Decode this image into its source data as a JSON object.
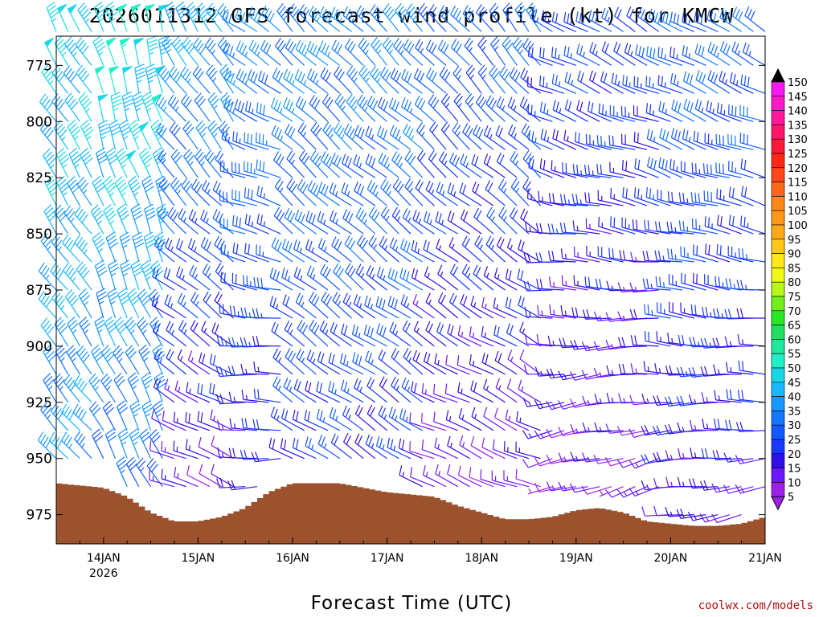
{
  "title": "2026011312 GFS forecast wind profile (kt) for KMCW",
  "credit": "coolwx.com/models",
  "chart_data": {
    "type": "wind-barb-time-height",
    "title": "2026011312 GFS forecast wind profile (kt) for KMCW",
    "xlabel": "Forecast Time (UTC)",
    "ylabel": "",
    "x_ticks": [
      {
        "label": "14JAN",
        "sublabel": "2026",
        "hour": 12
      },
      {
        "label": "15JAN",
        "sublabel": "",
        "hour": 36
      },
      {
        "label": "16JAN",
        "sublabel": "",
        "hour": 60
      },
      {
        "label": "17JAN",
        "sublabel": "",
        "hour": 84
      },
      {
        "label": "18JAN",
        "sublabel": "",
        "hour": 108
      },
      {
        "label": "19JAN",
        "sublabel": "",
        "hour": 132
      },
      {
        "label": "20JAN",
        "sublabel": "",
        "hour": 156
      },
      {
        "label": "21JAN",
        "sublabel": "",
        "hour": 180
      }
    ],
    "xlim": [
      0,
      180
    ],
    "y_ticks": [
      775,
      800,
      825,
      850,
      875,
      900,
      925,
      950,
      975
    ],
    "ylim": [
      762,
      988
    ],
    "pressure_levels": [
      760,
      775,
      787.5,
      800,
      812.5,
      825,
      837.5,
      850,
      862.5,
      875,
      887.5,
      900,
      912.5,
      925,
      937.5,
      950,
      962.5,
      975
    ],
    "time_step_hours": 3,
    "surface_pressure": [
      {
        "hour": 0,
        "p": 961
      },
      {
        "hour": 6,
        "p": 962
      },
      {
        "hour": 12,
        "p": 963
      },
      {
        "hour": 18,
        "p": 967
      },
      {
        "hour": 24,
        "p": 974
      },
      {
        "hour": 30,
        "p": 978
      },
      {
        "hour": 36,
        "p": 978
      },
      {
        "hour": 42,
        "p": 976
      },
      {
        "hour": 48,
        "p": 972
      },
      {
        "hour": 54,
        "p": 965
      },
      {
        "hour": 60,
        "p": 961
      },
      {
        "hour": 72,
        "p": 961
      },
      {
        "hour": 78,
        "p": 963
      },
      {
        "hour": 84,
        "p": 965
      },
      {
        "hour": 90,
        "p": 966
      },
      {
        "hour": 96,
        "p": 967
      },
      {
        "hour": 102,
        "p": 971
      },
      {
        "hour": 108,
        "p": 974
      },
      {
        "hour": 114,
        "p": 977
      },
      {
        "hour": 120,
        "p": 977
      },
      {
        "hour": 126,
        "p": 976
      },
      {
        "hour": 132,
        "p": 973
      },
      {
        "hour": 138,
        "p": 972
      },
      {
        "hour": 144,
        "p": 974
      },
      {
        "hour": 150,
        "p": 978
      },
      {
        "hour": 156,
        "p": 979
      },
      {
        "hour": 162,
        "p": 980
      },
      {
        "hour": 168,
        "p": 980
      },
      {
        "hour": 174,
        "p": 979
      },
      {
        "hour": 180,
        "p": 976
      }
    ],
    "wind_regimes": [
      {
        "from_hour": 0,
        "to_hour": 12,
        "speed_upper_kt": 45,
        "speed_lower_kt": 35,
        "dir_upper_deg": 330,
        "dir_lower_deg": 320
      },
      {
        "from_hour": 12,
        "to_hour": 30,
        "speed_upper_kt": 50,
        "speed_lower_kt": 30,
        "dir_upper_deg": 345,
        "dir_lower_deg": 330
      },
      {
        "from_hour": 30,
        "to_hour": 48,
        "speed_upper_kt": 40,
        "speed_lower_kt": 10,
        "dir_upper_deg": 330,
        "dir_lower_deg": 290
      },
      {
        "from_hour": 48,
        "to_hour": 60,
        "speed_upper_kt": 35,
        "speed_lower_kt": 15,
        "dir_upper_deg": 305,
        "dir_lower_deg": 260
      },
      {
        "from_hour": 60,
        "to_hour": 96,
        "speed_upper_kt": 35,
        "speed_lower_kt": 20,
        "dir_upper_deg": 315,
        "dir_lower_deg": 300
      },
      {
        "from_hour": 96,
        "to_hour": 126,
        "speed_upper_kt": 30,
        "speed_lower_kt": 10,
        "dir_upper_deg": 320,
        "dir_lower_deg": 290
      },
      {
        "from_hour": 126,
        "to_hour": 156,
        "speed_upper_kt": 25,
        "speed_lower_kt": 10,
        "dir_upper_deg": 300,
        "dir_lower_deg": 250
      },
      {
        "from_hour": 156,
        "to_hour": 180,
        "speed_upper_kt": 30,
        "speed_lower_kt": 15,
        "dir_upper_deg": 300,
        "dir_lower_deg": 260
      }
    ],
    "colorbar": {
      "unit": "kt",
      "labels": [
        5,
        10,
        15,
        20,
        25,
        30,
        35,
        40,
        45,
        50,
        55,
        60,
        65,
        70,
        75,
        80,
        85,
        90,
        95,
        100,
        105,
        110,
        115,
        120,
        125,
        130,
        135,
        140,
        145,
        150
      ],
      "colors": [
        "#9c20e8",
        "#6c18ff",
        "#3010e8",
        "#1838ff",
        "#1458ff",
        "#1478ff",
        "#1898ff",
        "#18b8ff",
        "#18d8e8",
        "#20f0c8",
        "#20e89c",
        "#20e060",
        "#28e828",
        "#70f018",
        "#b8f818",
        "#f0f818",
        "#ffe818",
        "#ffc818",
        "#ffa818",
        "#ff9818",
        "#ff8818",
        "#ff6818",
        "#ff4818",
        "#ff2818",
        "#ff1838",
        "#ff1868",
        "#ff189c",
        "#ff18c8",
        "#f818f0"
      ]
    }
  }
}
